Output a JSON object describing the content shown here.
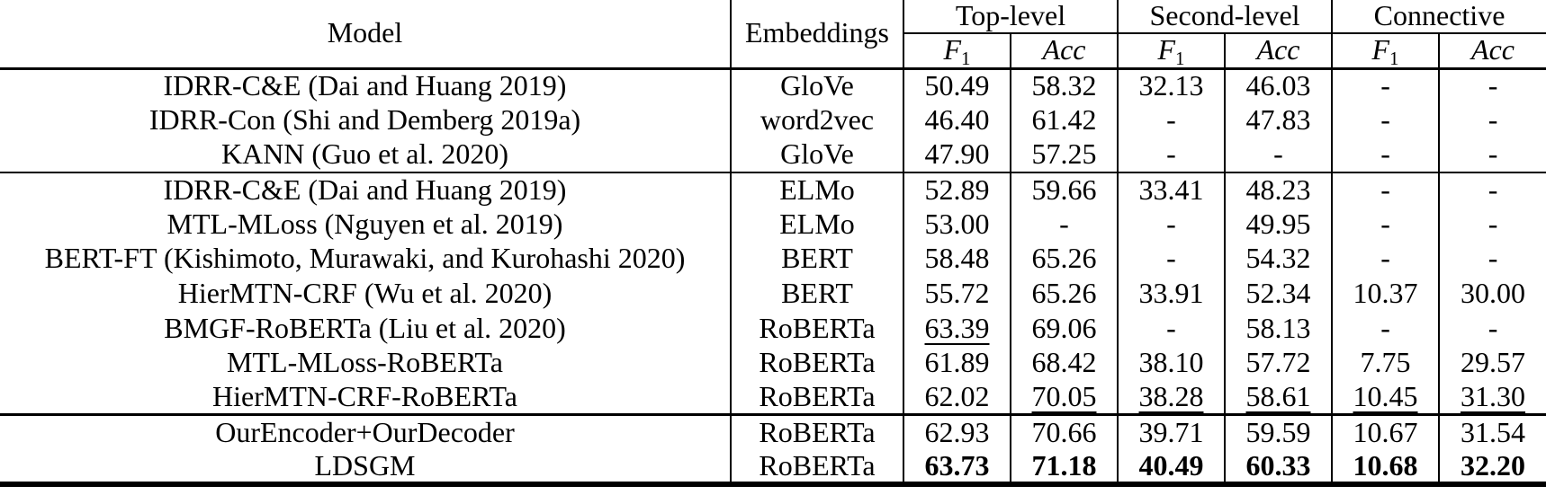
{
  "table": {
    "header": {
      "model_label": "Model",
      "embeddings_label": "Embeddings",
      "groups": [
        {
          "label": "Top-level"
        },
        {
          "label": "Second-level"
        },
        {
          "label": "Connective"
        }
      ],
      "f1_base": "F",
      "f1_sub": "1",
      "acc_label": "Acc"
    },
    "sections": [
      {
        "rows": [
          {
            "model": "IDRR-C&E (Dai and Huang 2019)",
            "embeddings": "GloVe",
            "values": [
              {
                "v": "50.49"
              },
              {
                "v": "58.32"
              },
              {
                "v": "32.13"
              },
              {
                "v": "46.03"
              },
              {
                "v": "-"
              },
              {
                "v": "-"
              }
            ]
          },
          {
            "model": "IDRR-Con (Shi and Demberg 2019a)",
            "embeddings": "word2vec",
            "values": [
              {
                "v": "46.40"
              },
              {
                "v": "61.42"
              },
              {
                "v": "-"
              },
              {
                "v": "47.83"
              },
              {
                "v": "-"
              },
              {
                "v": "-"
              }
            ]
          },
          {
            "model": "KANN (Guo et al. 2020)",
            "embeddings": "GloVe",
            "values": [
              {
                "v": "47.90"
              },
              {
                "v": "57.25"
              },
              {
                "v": "-"
              },
              {
                "v": "-"
              },
              {
                "v": "-"
              },
              {
                "v": "-"
              }
            ]
          }
        ]
      },
      {
        "rows": [
          {
            "model": "IDRR-C&E (Dai and Huang 2019)",
            "embeddings": "ELMo",
            "values": [
              {
                "v": "52.89"
              },
              {
                "v": "59.66"
              },
              {
                "v": "33.41"
              },
              {
                "v": "48.23"
              },
              {
                "v": "-"
              },
              {
                "v": "-"
              }
            ]
          },
          {
            "model": "MTL-MLoss (Nguyen et al. 2019)",
            "embeddings": "ELMo",
            "values": [
              {
                "v": "53.00"
              },
              {
                "v": "-"
              },
              {
                "v": "-"
              },
              {
                "v": "49.95"
              },
              {
                "v": "-"
              },
              {
                "v": "-"
              }
            ]
          },
          {
            "model": "BERT-FT (Kishimoto, Murawaki, and Kurohashi 2020)",
            "embeddings": "BERT",
            "values": [
              {
                "v": "58.48"
              },
              {
                "v": "65.26"
              },
              {
                "v": "-"
              },
              {
                "v": "54.32"
              },
              {
                "v": "-"
              },
              {
                "v": "-"
              }
            ]
          },
          {
            "model": "HierMTN-CRF (Wu et al. 2020)",
            "embeddings": "BERT",
            "values": [
              {
                "v": "55.72"
              },
              {
                "v": "65.26"
              },
              {
                "v": "33.91"
              },
              {
                "v": "52.34"
              },
              {
                "v": "10.37"
              },
              {
                "v": "30.00"
              }
            ]
          },
          {
            "model": "BMGF-RoBERTa (Liu et al. 2020)",
            "embeddings": "RoBERTa",
            "values": [
              {
                "v": "63.39",
                "s": "u"
              },
              {
                "v": "69.06"
              },
              {
                "v": "-"
              },
              {
                "v": "58.13"
              },
              {
                "v": "-"
              },
              {
                "v": "-"
              }
            ]
          },
          {
            "model": "MTL-MLoss-RoBERTa",
            "embeddings": "RoBERTa",
            "values": [
              {
                "v": "61.89"
              },
              {
                "v": "68.42"
              },
              {
                "v": "38.10"
              },
              {
                "v": "57.72"
              },
              {
                "v": "7.75"
              },
              {
                "v": "29.57"
              }
            ]
          },
          {
            "model": "HierMTN-CRF-RoBERTa",
            "embeddings": "RoBERTa",
            "values": [
              {
                "v": "62.02"
              },
              {
                "v": "70.05",
                "s": "u"
              },
              {
                "v": "38.28",
                "s": "u"
              },
              {
                "v": "58.61",
                "s": "u"
              },
              {
                "v": "10.45",
                "s": "u"
              },
              {
                "v": "31.30",
                "s": "u"
              }
            ]
          }
        ]
      },
      {
        "rows": [
          {
            "model": "OurEncoder+OurDecoder",
            "embeddings": "RoBERTa",
            "values": [
              {
                "v": "62.93"
              },
              {
                "v": "70.66"
              },
              {
                "v": "39.71"
              },
              {
                "v": "59.59"
              },
              {
                "v": "10.67"
              },
              {
                "v": "31.54"
              }
            ]
          },
          {
            "model": "LDSGM",
            "embeddings": "RoBERTa",
            "values": [
              {
                "v": "63.73",
                "s": "b"
              },
              {
                "v": "71.18",
                "s": "b"
              },
              {
                "v": "40.49",
                "s": "b"
              },
              {
                "v": "60.33",
                "s": "b"
              },
              {
                "v": "10.68",
                "s": "b"
              },
              {
                "v": "32.20",
                "s": "b"
              }
            ]
          }
        ]
      }
    ]
  }
}
